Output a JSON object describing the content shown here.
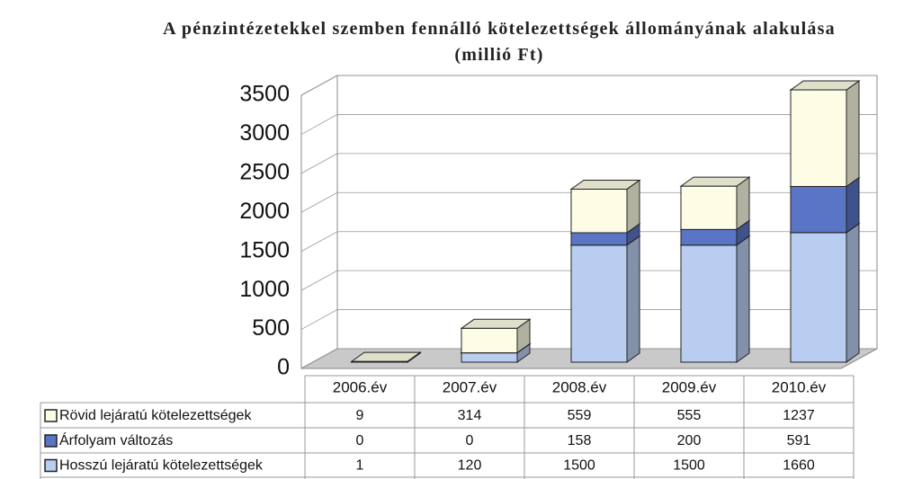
{
  "chart_data": {
    "type": "bar",
    "stacked": true,
    "title": "A pénzintézetekkel szemben fennálló kötelezettségek állományának alakulása (millió Ft)",
    "categories": [
      "2006.év",
      "2007.év",
      "2008.év",
      "2009.év",
      "2010.év"
    ],
    "series": [
      {
        "name": "Rövid lejáratú kötelezettségek",
        "color": "#fdfde6",
        "values": [
          9,
          314,
          559,
          555,
          1237
        ]
      },
      {
        "name": "Árfolyam változás",
        "color": "#5b75c6",
        "values": [
          0,
          0,
          158,
          200,
          591
        ]
      },
      {
        "name": "Hosszú lejáratú kötelezettségek",
        "color": "#b9cdf1",
        "values": [
          1,
          120,
          1500,
          1500,
          1660
        ]
      }
    ],
    "ylim": [
      0,
      3500
    ],
    "yticks": [
      0,
      500,
      1000,
      1500,
      2000,
      2500,
      3000,
      3500
    ],
    "grid": true
  }
}
